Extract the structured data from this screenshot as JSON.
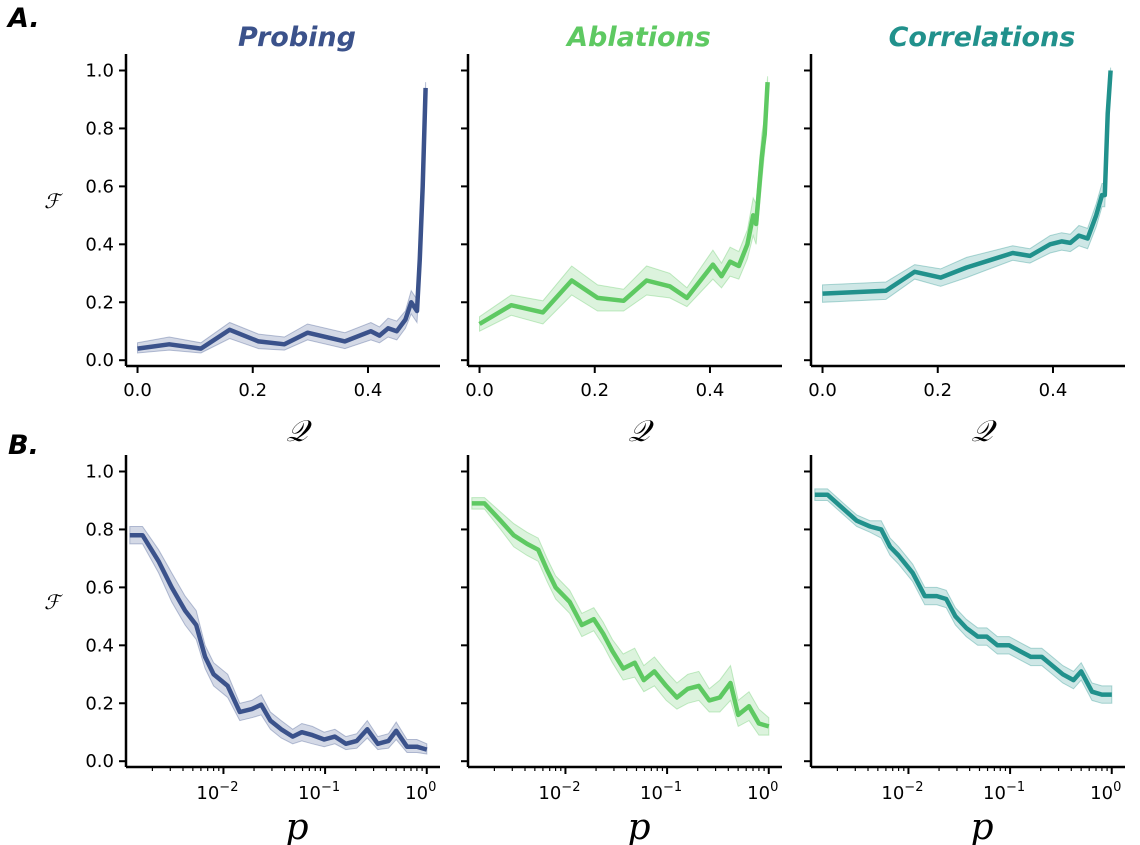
{
  "figure": {
    "row_labels": [
      "A.",
      "B."
    ],
    "colors": {
      "Probing": "#3b528b",
      "Ablations": "#5ec962",
      "Correlations": "#21918c"
    }
  },
  "chart_data": [
    {
      "type": "line",
      "row": "A.",
      "title": "Probing",
      "color": "#3b528b",
      "xlabel": "𝒬",
      "ylabel": "ℱ",
      "xscale": "linear",
      "xlim": [
        -0.02,
        0.525
      ],
      "ylim": [
        -0.02,
        1.05
      ],
      "xticks": [
        "0.0",
        "0.2",
        "0.4"
      ],
      "yticks": [
        "0.0",
        "0.2",
        "0.4",
        "0.6",
        "0.8",
        "1.0"
      ],
      "show_ytick_labels": true,
      "series": [
        {
          "x": [
            0.0,
            0.055,
            0.11,
            0.16,
            0.21,
            0.255,
            0.295,
            0.36,
            0.405,
            0.42,
            0.435,
            0.45,
            0.465,
            0.475,
            0.485,
            0.49,
            0.495,
            0.5
          ],
          "y": [
            0.04,
            0.055,
            0.04,
            0.105,
            0.065,
            0.055,
            0.095,
            0.065,
            0.1,
            0.085,
            0.11,
            0.1,
            0.14,
            0.2,
            0.17,
            0.35,
            0.6,
            0.94
          ],
          "lower": [
            0.025,
            0.035,
            0.025,
            0.075,
            0.04,
            0.035,
            0.07,
            0.04,
            0.07,
            0.06,
            0.08,
            0.07,
            0.11,
            0.16,
            0.13,
            0.3,
            0.55,
            0.9
          ],
          "upper": [
            0.06,
            0.08,
            0.06,
            0.13,
            0.09,
            0.08,
            0.125,
            0.095,
            0.13,
            0.115,
            0.145,
            0.135,
            0.17,
            0.24,
            0.21,
            0.4,
            0.65,
            0.96
          ]
        }
      ]
    },
    {
      "type": "line",
      "row": "A.",
      "title": "Ablations",
      "color": "#5ec962",
      "xlabel": "𝒬",
      "ylabel": "",
      "xscale": "linear",
      "xlim": [
        -0.02,
        0.525
      ],
      "ylim": [
        -0.02,
        1.05
      ],
      "xticks": [
        "0.0",
        "0.2",
        "0.4"
      ],
      "yticks": [
        "",
        "",
        "",
        "",
        "",
        ""
      ],
      "show_ytick_labels": false,
      "series": [
        {
          "x": [
            0.0,
            0.055,
            0.11,
            0.16,
            0.205,
            0.25,
            0.29,
            0.33,
            0.36,
            0.405,
            0.42,
            0.435,
            0.45,
            0.465,
            0.475,
            0.48,
            0.49,
            0.495,
            0.5
          ],
          "y": [
            0.125,
            0.19,
            0.165,
            0.275,
            0.215,
            0.205,
            0.275,
            0.255,
            0.215,
            0.33,
            0.29,
            0.34,
            0.325,
            0.4,
            0.5,
            0.47,
            0.7,
            0.78,
            0.96
          ],
          "lower": [
            0.1,
            0.155,
            0.125,
            0.225,
            0.17,
            0.17,
            0.225,
            0.215,
            0.185,
            0.28,
            0.25,
            0.29,
            0.28,
            0.35,
            0.43,
            0.4,
            0.62,
            0.72,
            0.93
          ],
          "upper": [
            0.15,
            0.225,
            0.205,
            0.325,
            0.26,
            0.245,
            0.325,
            0.3,
            0.25,
            0.38,
            0.335,
            0.39,
            0.375,
            0.45,
            0.56,
            0.54,
            0.78,
            0.84,
            0.98
          ]
        }
      ]
    },
    {
      "type": "line",
      "row": "A.",
      "title": "Correlations",
      "color": "#21918c",
      "xlabel": "𝒬",
      "ylabel": "",
      "xscale": "linear",
      "xlim": [
        -0.02,
        0.525
      ],
      "ylim": [
        -0.02,
        1.05
      ],
      "xticks": [
        "0.0",
        "0.2",
        "0.4"
      ],
      "yticks": [
        "",
        "",
        "",
        "",
        "",
        ""
      ],
      "show_ytick_labels": false,
      "series": [
        {
          "x": [
            0.0,
            0.11,
            0.16,
            0.205,
            0.25,
            0.29,
            0.33,
            0.36,
            0.395,
            0.415,
            0.43,
            0.445,
            0.46,
            0.475,
            0.485,
            0.49,
            0.495,
            0.5
          ],
          "y": [
            0.23,
            0.24,
            0.305,
            0.285,
            0.32,
            0.345,
            0.37,
            0.36,
            0.4,
            0.41,
            0.405,
            0.43,
            0.42,
            0.5,
            0.57,
            0.57,
            0.85,
            1.0
          ],
          "lower": [
            0.2,
            0.21,
            0.28,
            0.255,
            0.285,
            0.315,
            0.345,
            0.335,
            0.37,
            0.38,
            0.375,
            0.395,
            0.385,
            0.46,
            0.53,
            0.53,
            0.8,
            0.98
          ],
          "upper": [
            0.26,
            0.27,
            0.33,
            0.315,
            0.355,
            0.375,
            0.395,
            0.385,
            0.43,
            0.44,
            0.435,
            0.465,
            0.455,
            0.54,
            0.61,
            0.61,
            0.9,
            1.01
          ]
        }
      ]
    },
    {
      "type": "line",
      "row": "B.",
      "title": "",
      "color": "#3b528b",
      "xlabel": "p",
      "ylabel": "ℱ",
      "xscale": "log",
      "xlim": [
        0.0011,
        1.35
      ],
      "ylim": [
        -0.02,
        1.05
      ],
      "xticks": [
        "10^-2",
        "10^-1",
        "10^0"
      ],
      "yticks": [
        "0.0",
        "0.2",
        "0.4",
        "0.6",
        "0.8",
        "1.0"
      ],
      "show_ytick_labels": true,
      "series": [
        {
          "x": [
            0.0012,
            0.0016,
            0.0023,
            0.0031,
            0.0042,
            0.0054,
            0.0066,
            0.008,
            0.011,
            0.0145,
            0.019,
            0.0235,
            0.029,
            0.037,
            0.048,
            0.059,
            0.075,
            0.098,
            0.125,
            0.16,
            0.205,
            0.26,
            0.33,
            0.42,
            0.5,
            0.64,
            0.8,
            1.0
          ],
          "y": [
            0.78,
            0.78,
            0.69,
            0.6,
            0.52,
            0.47,
            0.36,
            0.3,
            0.26,
            0.17,
            0.18,
            0.195,
            0.14,
            0.11,
            0.085,
            0.1,
            0.09,
            0.075,
            0.085,
            0.06,
            0.07,
            0.11,
            0.06,
            0.07,
            0.105,
            0.05,
            0.05,
            0.04
          ],
          "lower": [
            0.75,
            0.75,
            0.65,
            0.55,
            0.47,
            0.42,
            0.32,
            0.26,
            0.22,
            0.14,
            0.15,
            0.16,
            0.11,
            0.08,
            0.06,
            0.07,
            0.06,
            0.05,
            0.06,
            0.04,
            0.045,
            0.08,
            0.04,
            0.045,
            0.075,
            0.03,
            0.03,
            0.025
          ],
          "upper": [
            0.81,
            0.81,
            0.73,
            0.65,
            0.57,
            0.52,
            0.4,
            0.34,
            0.3,
            0.2,
            0.21,
            0.23,
            0.17,
            0.14,
            0.11,
            0.13,
            0.12,
            0.1,
            0.11,
            0.085,
            0.095,
            0.14,
            0.085,
            0.095,
            0.135,
            0.075,
            0.075,
            0.06
          ]
        }
      ]
    },
    {
      "type": "line",
      "row": "B.",
      "title": "",
      "color": "#5ec962",
      "xlabel": "p",
      "ylabel": "",
      "xscale": "log",
      "xlim": [
        0.0011,
        1.35
      ],
      "ylim": [
        -0.02,
        1.05
      ],
      "xticks": [
        "10^-2",
        "10^-1",
        "10^0"
      ],
      "yticks": [
        "",
        "",
        "",
        "",
        "",
        ""
      ],
      "show_ytick_labels": false,
      "series": [
        {
          "x": [
            0.0012,
            0.0016,
            0.0023,
            0.0031,
            0.0042,
            0.0054,
            0.0066,
            0.008,
            0.011,
            0.0145,
            0.019,
            0.0235,
            0.029,
            0.037,
            0.048,
            0.059,
            0.075,
            0.098,
            0.125,
            0.16,
            0.205,
            0.26,
            0.33,
            0.42,
            0.5,
            0.64,
            0.8,
            1.0
          ],
          "y": [
            0.89,
            0.89,
            0.83,
            0.78,
            0.75,
            0.73,
            0.66,
            0.6,
            0.55,
            0.47,
            0.49,
            0.44,
            0.38,
            0.32,
            0.34,
            0.28,
            0.31,
            0.26,
            0.22,
            0.25,
            0.26,
            0.21,
            0.22,
            0.27,
            0.16,
            0.19,
            0.13,
            0.12
          ],
          "lower": [
            0.87,
            0.87,
            0.8,
            0.74,
            0.71,
            0.69,
            0.62,
            0.56,
            0.51,
            0.43,
            0.45,
            0.4,
            0.34,
            0.28,
            0.29,
            0.24,
            0.26,
            0.21,
            0.18,
            0.2,
            0.21,
            0.17,
            0.17,
            0.21,
            0.12,
            0.14,
            0.09,
            0.09
          ],
          "upper": [
            0.91,
            0.91,
            0.86,
            0.82,
            0.79,
            0.77,
            0.7,
            0.64,
            0.59,
            0.51,
            0.53,
            0.48,
            0.42,
            0.37,
            0.39,
            0.33,
            0.36,
            0.31,
            0.27,
            0.3,
            0.31,
            0.25,
            0.28,
            0.33,
            0.21,
            0.24,
            0.18,
            0.15
          ]
        }
      ]
    },
    {
      "type": "line",
      "row": "B.",
      "title": "",
      "color": "#21918c",
      "xlabel": "p",
      "ylabel": "",
      "xscale": "log",
      "xlim": [
        0.0011,
        1.35
      ],
      "ylim": [
        -0.02,
        1.05
      ],
      "xticks": [
        "10^-2",
        "10^-1",
        "10^0"
      ],
      "yticks": [
        "",
        "",
        "",
        "",
        "",
        ""
      ],
      "show_ytick_labels": false,
      "series": [
        {
          "x": [
            0.0012,
            0.0016,
            0.0023,
            0.0031,
            0.0042,
            0.0054,
            0.0066,
            0.008,
            0.011,
            0.0145,
            0.019,
            0.0235,
            0.029,
            0.037,
            0.048,
            0.059,
            0.075,
            0.098,
            0.125,
            0.16,
            0.205,
            0.26,
            0.33,
            0.42,
            0.5,
            0.64,
            0.8,
            1.0
          ],
          "y": [
            0.92,
            0.92,
            0.87,
            0.83,
            0.81,
            0.8,
            0.74,
            0.71,
            0.65,
            0.57,
            0.57,
            0.56,
            0.5,
            0.46,
            0.43,
            0.43,
            0.4,
            0.4,
            0.38,
            0.36,
            0.36,
            0.33,
            0.3,
            0.28,
            0.31,
            0.24,
            0.23,
            0.23
          ],
          "lower": [
            0.9,
            0.9,
            0.85,
            0.81,
            0.79,
            0.77,
            0.71,
            0.68,
            0.62,
            0.54,
            0.54,
            0.53,
            0.47,
            0.43,
            0.4,
            0.4,
            0.37,
            0.37,
            0.35,
            0.33,
            0.33,
            0.3,
            0.27,
            0.25,
            0.28,
            0.21,
            0.2,
            0.2
          ],
          "upper": [
            0.94,
            0.94,
            0.89,
            0.85,
            0.83,
            0.83,
            0.77,
            0.74,
            0.68,
            0.6,
            0.6,
            0.59,
            0.53,
            0.49,
            0.46,
            0.46,
            0.43,
            0.43,
            0.41,
            0.39,
            0.39,
            0.36,
            0.33,
            0.31,
            0.34,
            0.27,
            0.26,
            0.26
          ]
        }
      ]
    }
  ]
}
